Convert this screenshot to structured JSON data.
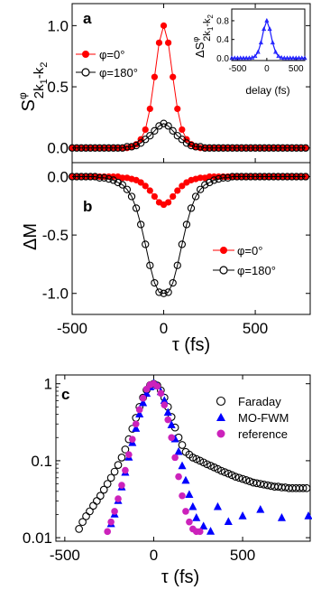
{
  "chart_data": [
    {
      "panel": "a",
      "type": "scatter",
      "panel_label": "a",
      "ylabel_main": "S",
      "ylabel_sup": "φ",
      "ylabel_sub": "2k",
      "ylabel_sub_idx1": "1",
      "ylabel_sub_tail": "-k",
      "ylabel_sub_idx2": "2",
      "xlim": [
        -500,
        800
      ],
      "ylim": [
        -0.12,
        1.18
      ],
      "yticks": [
        0.0,
        0.5,
        1.0
      ],
      "ytick_labels": [
        "0.0",
        "0.5",
        "1.0"
      ],
      "xticks": [
        -500,
        0,
        500
      ],
      "legend_position": "left",
      "series": [
        {
          "name": "φ=0°",
          "marker": "filled-circle",
          "color": "#ff0000",
          "x": [
            -500,
            -475,
            -450,
            -425,
            -400,
            -375,
            -350,
            -325,
            -300,
            -275,
            -250,
            -225,
            -200,
            -175,
            -150,
            -125,
            -100,
            -75,
            -50,
            -25,
            0,
            25,
            50,
            75,
            100,
            125,
            150,
            175,
            200,
            225,
            250,
            275,
            300,
            325,
            350,
            375,
            400,
            425,
            450,
            475,
            500,
            525,
            550,
            575,
            600,
            625,
            650,
            675,
            700,
            725,
            750,
            775
          ],
          "y": [
            0,
            0,
            0,
            0,
            0,
            0,
            0,
            0,
            0,
            0,
            0,
            0,
            0,
            0.01,
            0.03,
            0.07,
            0.15,
            0.32,
            0.58,
            0.86,
            1.0,
            0.86,
            0.58,
            0.32,
            0.15,
            0.07,
            0.03,
            0.01,
            0,
            0,
            0,
            0,
            0,
            0,
            0,
            0,
            0,
            0,
            0,
            0,
            0,
            0,
            0,
            0,
            0,
            0,
            0,
            0,
            0,
            0,
            0,
            0
          ]
        },
        {
          "name": "φ=180°",
          "marker": "open-circle",
          "color": "#000000",
          "x": [
            -500,
            -475,
            -450,
            -425,
            -400,
            -375,
            -350,
            -325,
            -300,
            -275,
            -250,
            -225,
            -200,
            -175,
            -150,
            -125,
            -100,
            -75,
            -50,
            -25,
            0,
            25,
            50,
            75,
            100,
            125,
            150,
            175,
            200,
            225,
            250,
            275,
            300,
            325,
            350,
            375,
            400,
            425,
            450,
            475,
            500,
            525,
            550,
            575,
            600,
            625,
            650,
            675,
            700,
            725,
            750,
            775
          ],
          "y": [
            0,
            0,
            0,
            0,
            0,
            0,
            0,
            0,
            0,
            0,
            0,
            0,
            0.01,
            0.01,
            0.02,
            0.04,
            0.07,
            0.1,
            0.14,
            0.18,
            0.2,
            0.18,
            0.14,
            0.1,
            0.07,
            0.04,
            0.02,
            0.01,
            0.01,
            0,
            0,
            0,
            0,
            0,
            0,
            0,
            0,
            0,
            0,
            0,
            0,
            0,
            0,
            0,
            0,
            0,
            0,
            0,
            0,
            0,
            0,
            0
          ]
        }
      ]
    },
    {
      "panel": "a-inset",
      "type": "line",
      "xlabel": "delay (fs)",
      "ylabel_main": "ΔS",
      "ylabel_sup": "φ",
      "ylabel_sub": "2k",
      "ylabel_sub_idx1": "1",
      "ylabel_sub_tail": "-k",
      "ylabel_sub_idx2": "2",
      "xlim": [
        -600,
        650
      ],
      "ylim": [
        -0.05,
        1.05
      ],
      "xticks": [
        -500,
        0,
        500
      ],
      "yticks": [
        0.0,
        0.4,
        0.8
      ],
      "ytick_labels": [
        "0.0",
        "0.4",
        "0.8"
      ],
      "series": [
        {
          "name": "",
          "color": "#1a1aff",
          "marker": "triangle",
          "x": [
            -600,
            -550,
            -500,
            -450,
            -400,
            -350,
            -300,
            -250,
            -200,
            -150,
            -100,
            -50,
            0,
            50,
            100,
            150,
            200,
            250,
            300,
            350,
            400,
            450,
            500,
            550,
            600,
            650
          ],
          "y": [
            0,
            0,
            0,
            0,
            0,
            0,
            0,
            0.01,
            0.04,
            0.13,
            0.33,
            0.62,
            0.8,
            0.62,
            0.33,
            0.13,
            0.04,
            0.01,
            0,
            0,
            0,
            0,
            0,
            0,
            0,
            0
          ]
        }
      ]
    },
    {
      "panel": "b",
      "type": "scatter",
      "panel_label": "b",
      "ylabel": "ΔM",
      "xlabel": "τ (fs)",
      "xlim": [
        -500,
        800
      ],
      "ylim": [
        -1.18,
        0.12
      ],
      "yticks": [
        -1.0,
        -0.5,
        0.0
      ],
      "ytick_labels": [
        "-1.0",
        "-0.5",
        "0.0"
      ],
      "xticks": [
        -500,
        0,
        500
      ],
      "xtick_labels": [
        "-500",
        "0",
        "500"
      ],
      "legend_position": "bottom-right",
      "series": [
        {
          "name": "φ=0°",
          "marker": "filled-circle",
          "color": "#ff0000",
          "x": [
            -500,
            -475,
            -450,
            -425,
            -400,
            -375,
            -350,
            -325,
            -300,
            -275,
            -250,
            -225,
            -200,
            -175,
            -150,
            -125,
            -100,
            -75,
            -50,
            -25,
            0,
            25,
            50,
            75,
            100,
            125,
            150,
            175,
            200,
            225,
            250,
            275,
            300,
            325,
            350,
            375,
            400,
            425,
            450,
            475,
            500,
            525,
            550,
            575,
            600,
            625,
            650,
            675,
            700,
            725,
            750,
            775
          ],
          "y": [
            0,
            0,
            0,
            0,
            0,
            0,
            0,
            0,
            0,
            0,
            0,
            -0.01,
            -0.01,
            -0.02,
            -0.03,
            -0.05,
            -0.08,
            -0.12,
            -0.17,
            -0.22,
            -0.24,
            -0.22,
            -0.17,
            -0.12,
            -0.08,
            -0.05,
            -0.03,
            -0.02,
            -0.01,
            -0.01,
            0,
            0,
            0,
            0,
            0,
            0,
            0,
            0,
            0,
            0,
            0,
            0,
            0,
            0,
            0,
            0,
            0,
            0,
            0,
            0,
            0,
            0
          ]
        },
        {
          "name": "φ=180°",
          "marker": "open-circle",
          "color": "#000000",
          "x": [
            -500,
            -475,
            -450,
            -425,
            -400,
            -375,
            -350,
            -325,
            -300,
            -275,
            -250,
            -225,
            -200,
            -175,
            -150,
            -125,
            -100,
            -75,
            -50,
            -25,
            0,
            25,
            50,
            75,
            100,
            125,
            150,
            175,
            200,
            225,
            250,
            275,
            300,
            325,
            350,
            375,
            400,
            425,
            450,
            475,
            500,
            525,
            550,
            575,
            600,
            625,
            650,
            675,
            700,
            725,
            750,
            775
          ],
          "y": [
            0,
            0,
            0,
            0,
            0,
            0,
            -0.01,
            -0.01,
            -0.02,
            -0.03,
            -0.05,
            -0.07,
            -0.11,
            -0.17,
            -0.27,
            -0.41,
            -0.58,
            -0.76,
            -0.91,
            -0.99,
            -1.0,
            -0.99,
            -0.91,
            -0.76,
            -0.58,
            -0.41,
            -0.27,
            -0.17,
            -0.11,
            -0.07,
            -0.05,
            -0.03,
            -0.02,
            -0.01,
            -0.01,
            0,
            0,
            0,
            0,
            0,
            0,
            0,
            0,
            0,
            0,
            0,
            0,
            0,
            0,
            0,
            0,
            0
          ]
        }
      ]
    },
    {
      "panel": "c",
      "type": "scatter",
      "panel_label": "c",
      "xlabel": "τ (fs)",
      "scale_y": "log",
      "xlim": [
        -550,
        880
      ],
      "ylim": [
        0.009,
        1.3
      ],
      "xticks": [
        -500,
        0,
        500
      ],
      "xtick_labels": [
        "-500",
        "0",
        "500"
      ],
      "yticks": [
        0.01,
        0.1,
        1
      ],
      "ytick_labels": [
        "0.01",
        "0.1",
        "1"
      ],
      "legend_position": "top-right",
      "series": [
        {
          "name": "Faraday",
          "marker": "open-circle",
          "color": "#000000",
          "x": [
            -420,
            -400,
            -380,
            -360,
            -340,
            -320,
            -300,
            -280,
            -260,
            -240,
            -220,
            -200,
            -180,
            -160,
            -140,
            -120,
            -100,
            -80,
            -60,
            -40,
            -20,
            0,
            20,
            40,
            60,
            80,
            100,
            120,
            140,
            160,
            180,
            200,
            220,
            240,
            260,
            280,
            300,
            320,
            340,
            360,
            380,
            400,
            420,
            440,
            460,
            480,
            500,
            520,
            540,
            560,
            580,
            600,
            620,
            640,
            660,
            680,
            700,
            720,
            740,
            760,
            780,
            800,
            820,
            840,
            860
          ],
          "y": [
            0.013,
            0.016,
            0.019,
            0.022,
            0.026,
            0.03,
            0.035,
            0.042,
            0.05,
            0.06,
            0.072,
            0.088,
            0.11,
            0.14,
            0.19,
            0.26,
            0.36,
            0.5,
            0.66,
            0.83,
            0.96,
            1.0,
            0.95,
            0.82,
            0.66,
            0.5,
            0.37,
            0.27,
            0.2,
            0.16,
            0.13,
            0.12,
            0.11,
            0.105,
            0.1,
            0.095,
            0.09,
            0.086,
            0.082,
            0.078,
            0.074,
            0.071,
            0.068,
            0.065,
            0.062,
            0.06,
            0.058,
            0.056,
            0.054,
            0.052,
            0.051,
            0.05,
            0.049,
            0.048,
            0.047,
            0.046,
            0.046,
            0.045,
            0.045,
            0.044,
            0.044,
            0.044,
            0.044,
            0.044,
            0.044
          ]
        },
        {
          "name": "MO-FWM",
          "marker": "filled-triangle",
          "color": "#0000ff",
          "x": [
            -240,
            -220,
            -200,
            -180,
            -160,
            -140,
            -120,
            -100,
            -80,
            -60,
            -40,
            -20,
            0,
            20,
            40,
            60,
            80,
            100,
            120,
            140,
            160,
            180,
            200,
            220,
            240,
            280,
            320,
            360,
            420,
            500,
            600,
            720,
            870
          ],
          "y": [
            0.015,
            0.02,
            0.03,
            0.045,
            0.07,
            0.11,
            0.17,
            0.26,
            0.4,
            0.56,
            0.74,
            0.9,
            1.0,
            0.93,
            0.78,
            0.6,
            0.42,
            0.29,
            0.19,
            0.13,
            0.085,
            0.055,
            0.036,
            0.025,
            0.018,
            0.014,
            0.012,
            0.025,
            0.016,
            0.019,
            0.023,
            0.018,
            0.019
          ]
        },
        {
          "name": "reference",
          "marker": "filled-circle",
          "color": "#cc22bb",
          "x": [
            -260,
            -240,
            -220,
            -200,
            -180,
            -160,
            -140,
            -120,
            -100,
            -80,
            -60,
            -40,
            -20,
            0,
            20,
            40,
            60,
            80,
            100,
            120,
            140,
            160,
            180,
            200,
            220,
            240,
            260
          ],
          "y": [
            0.012,
            0.016,
            0.022,
            0.032,
            0.048,
            0.075,
            0.12,
            0.19,
            0.3,
            0.46,
            0.65,
            0.85,
            0.97,
            1.0,
            0.93,
            0.75,
            0.53,
            0.34,
            0.2,
            0.11,
            0.062,
            0.035,
            0.022,
            0.016,
            0.013,
            0.012,
            0.012
          ]
        }
      ]
    }
  ]
}
